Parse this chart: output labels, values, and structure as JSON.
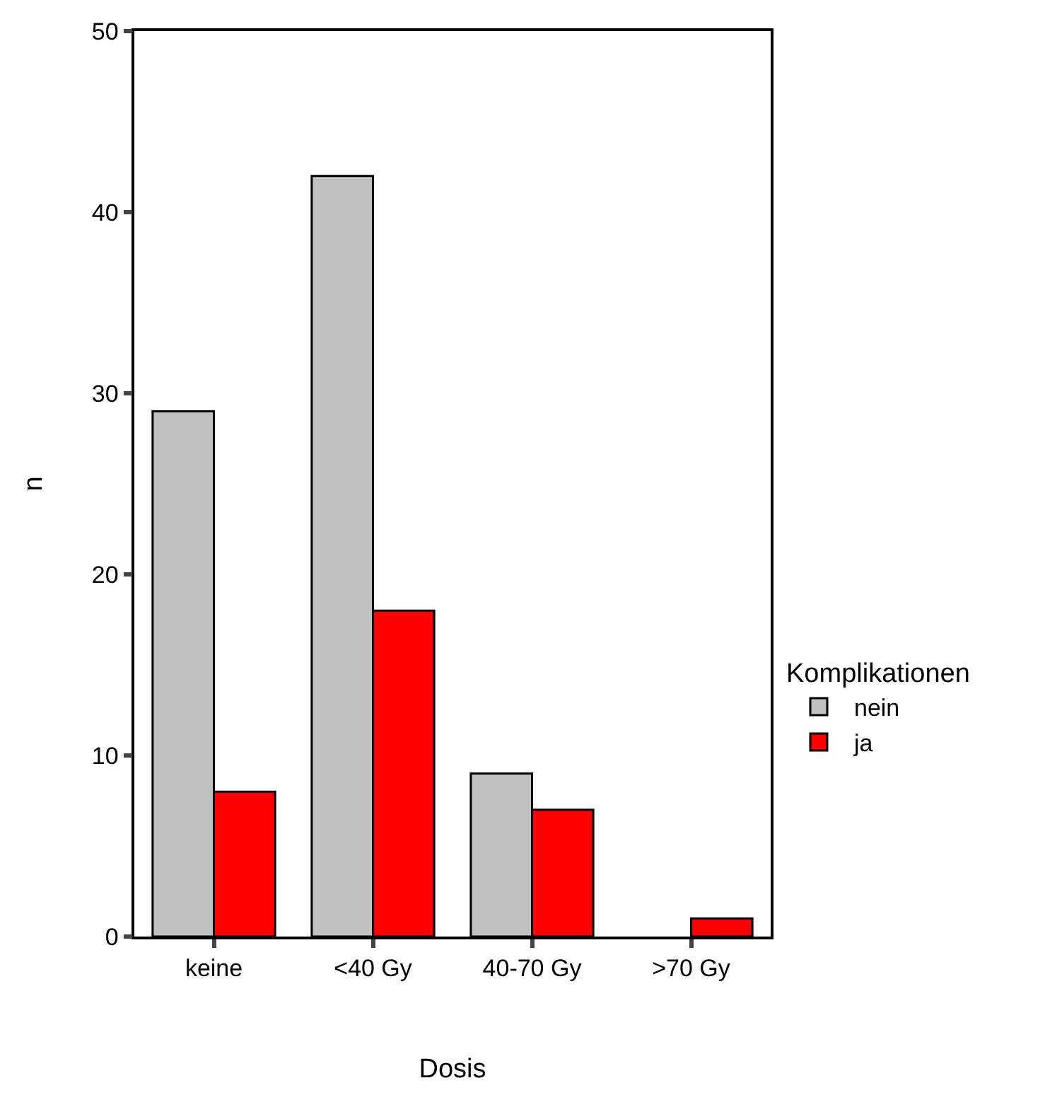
{
  "chart_data": {
    "type": "bar",
    "xlabel": "Dosis",
    "ylabel": "n",
    "legend_title": "Komplikationen",
    "categories": [
      "keine",
      "<40 Gy",
      "40-70 Gy",
      ">70 Gy"
    ],
    "series": [
      {
        "name": "nein",
        "color": "#c0c0c0",
        "values": [
          29,
          42,
          9,
          0
        ]
      },
      {
        "name": "ja",
        "color": "#ff0000",
        "values": [
          8,
          18,
          7,
          1
        ]
      }
    ],
    "ylim": [
      0,
      50
    ],
    "yticks": [
      0,
      10,
      20,
      30,
      40,
      50
    ],
    "grid": false,
    "legend": "right"
  }
}
